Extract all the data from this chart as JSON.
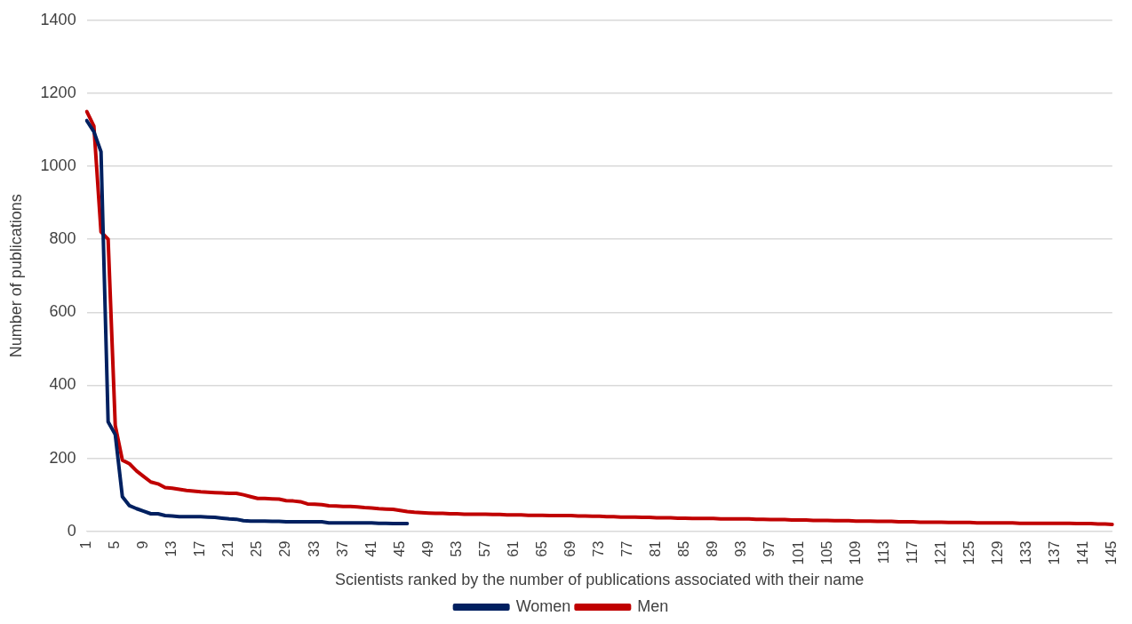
{
  "chart_data": {
    "type": "line",
    "xlabel": "Scientists ranked by the number of publications associated with their name",
    "ylabel": "Number of publications",
    "categories": [
      "1",
      null,
      null,
      null,
      "5",
      null,
      null,
      null,
      "9",
      null,
      null,
      null,
      "13",
      null,
      null,
      null,
      "17",
      null,
      null,
      null,
      "21",
      null,
      null,
      null,
      "25",
      null,
      null,
      null,
      "29",
      null,
      null,
      null,
      "33",
      null,
      null,
      null,
      "37",
      null,
      null,
      null,
      "41",
      null,
      null,
      null,
      "45",
      null,
      null,
      null,
      "49",
      null,
      null,
      null,
      "53",
      null,
      null,
      null,
      "57",
      null,
      null,
      null,
      "61",
      null,
      null,
      null,
      "65",
      null,
      null,
      null,
      "69",
      null,
      null,
      null,
      "73",
      null,
      null,
      null,
      "77",
      null,
      null,
      null,
      "81",
      null,
      null,
      null,
      "85",
      null,
      null,
      null,
      "89",
      null,
      null,
      null,
      "93",
      null,
      null,
      null,
      "97",
      null,
      null,
      null,
      "101",
      null,
      null,
      null,
      "105",
      null,
      null,
      null,
      "109",
      null,
      null,
      null,
      "113",
      null,
      null,
      null,
      "117",
      null,
      null,
      null,
      "121",
      null,
      null,
      null,
      "125",
      null,
      null,
      null,
      "129",
      null,
      null,
      null,
      "133",
      null,
      null,
      null,
      "137",
      null,
      null,
      null,
      "141",
      null,
      null,
      null,
      "145"
    ],
    "series": [
      {
        "name": "Women",
        "color": "#002060",
        "values": [
          1125,
          1095,
          1040,
          300,
          265,
          95,
          70,
          62,
          55,
          48,
          48,
          43,
          42,
          40,
          40,
          40,
          40,
          39,
          38,
          36,
          34,
          33,
          29,
          28,
          28,
          28,
          27,
          27,
          26,
          26,
          26,
          26,
          26,
          26,
          23,
          23,
          23,
          23,
          23,
          23,
          23,
          22,
          22,
          21,
          21,
          21,
          null,
          null,
          null,
          null,
          null,
          null,
          null,
          null,
          null,
          null,
          null,
          null,
          null,
          null,
          null,
          null,
          null,
          null,
          null,
          null,
          null,
          null,
          null,
          null,
          null,
          null,
          null,
          null,
          null,
          null,
          null,
          null,
          null,
          null,
          null,
          null,
          null,
          null,
          null,
          null,
          null,
          null,
          null,
          null,
          null,
          null,
          null,
          null,
          null,
          null,
          null,
          null,
          null,
          null,
          null,
          null,
          null,
          null,
          null,
          null,
          null,
          null,
          null,
          null,
          null,
          null,
          null,
          null,
          null,
          null,
          null,
          null,
          null,
          null,
          null,
          null,
          null,
          null,
          null,
          null,
          null,
          null,
          null,
          null,
          null,
          null,
          null,
          null,
          null,
          null,
          null,
          null,
          null,
          null,
          null,
          null,
          null,
          null,
          null
        ]
      },
      {
        "name": "Men",
        "color": "#c00000",
        "values": [
          1150,
          1110,
          820,
          800,
          290,
          195,
          185,
          165,
          150,
          135,
          130,
          120,
          118,
          115,
          112,
          110,
          108,
          107,
          106,
          105,
          104,
          104,
          100,
          95,
          90,
          90,
          89,
          88,
          84,
          83,
          81,
          75,
          74,
          73,
          70,
          69,
          68,
          68,
          67,
          65,
          64,
          62,
          61,
          60,
          57,
          54,
          52,
          51,
          50,
          49,
          49,
          48,
          48,
          47,
          47,
          47,
          47,
          46,
          46,
          45,
          45,
          45,
          44,
          44,
          44,
          43,
          43,
          43,
          43,
          42,
          42,
          41,
          41,
          40,
          40,
          39,
          39,
          39,
          38,
          38,
          37,
          37,
          37,
          36,
          36,
          35,
          35,
          35,
          35,
          34,
          34,
          34,
          34,
          34,
          33,
          33,
          32,
          32,
          32,
          31,
          31,
          31,
          30,
          30,
          30,
          29,
          29,
          29,
          28,
          28,
          28,
          27,
          27,
          27,
          26,
          26,
          26,
          25,
          25,
          25,
          25,
          24,
          24,
          24,
          24,
          23,
          23,
          23,
          23,
          23,
          23,
          22,
          22,
          22,
          22,
          22,
          22,
          22,
          22,
          21,
          21,
          21,
          20,
          20,
          19
        ]
      }
    ],
    "ylim": [
      0,
      1400
    ],
    "yticks": [
      0,
      200,
      400,
      600,
      800,
      1000,
      1200,
      1400
    ],
    "grid": "y",
    "legend": "bottom",
    "marker": "none",
    "line_style": "solid"
  }
}
